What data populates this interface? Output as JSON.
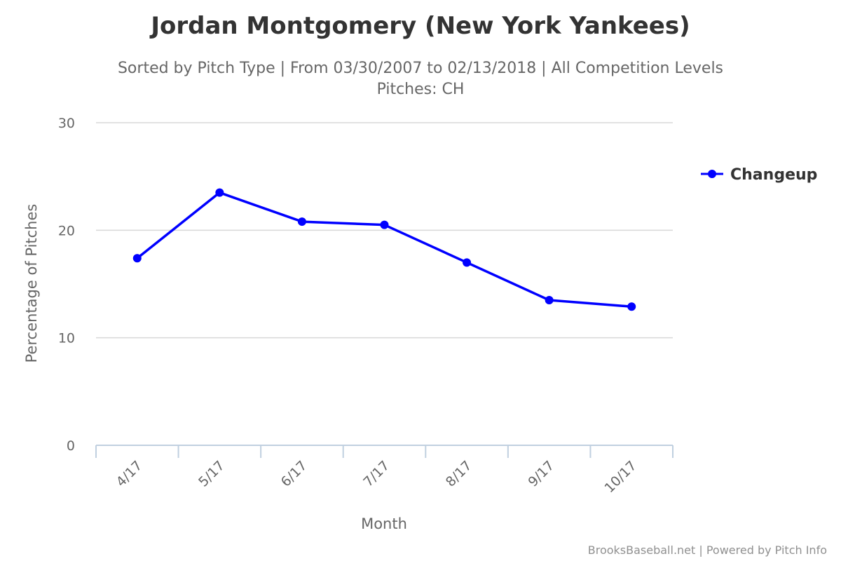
{
  "chart_data": {
    "type": "line",
    "title": "Jordan Montgomery (New York Yankees)",
    "subtitle_line1": "Sorted by Pitch Type | From 03/30/2007 to 02/13/2018 | All Competition Levels",
    "subtitle_line2": "Pitches: CH",
    "xlabel": "Month",
    "ylabel": "Percentage of Pitches",
    "categories": [
      "4/17",
      "5/17",
      "6/17",
      "7/17",
      "8/17",
      "9/17",
      "10/17"
    ],
    "ylim": [
      0,
      30
    ],
    "yticks": [
      "0",
      "10",
      "20",
      "30"
    ],
    "grid": true,
    "legend_position": "right",
    "series": [
      {
        "name": "Changeup",
        "color": "#0000ff",
        "values": [
          17.4,
          23.5,
          20.8,
          20.5,
          17.0,
          13.5,
          12.9
        ]
      }
    ],
    "credits": "BrooksBaseball.net | Powered by Pitch Info"
  }
}
